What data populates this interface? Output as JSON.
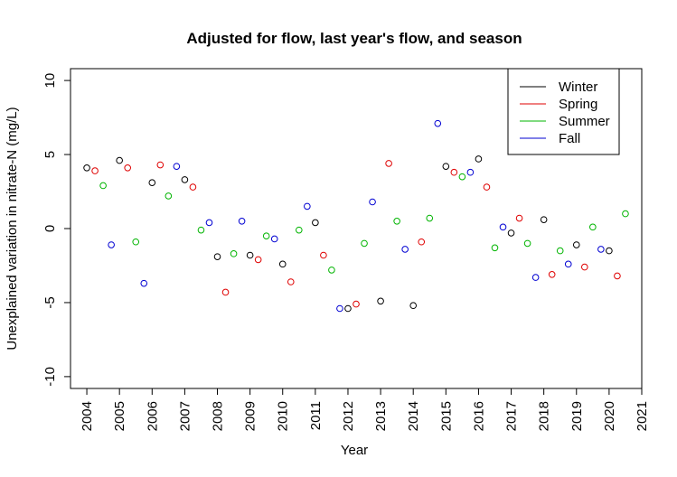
{
  "chart_data": {
    "type": "scatter",
    "title": "Adjusted for flow, last year's flow, and season",
    "xlabel": "Year",
    "ylabel": "Unexplained variation in nitrate-N (mg/L)",
    "xlim": [
      2003.5,
      2021.0
    ],
    "ylim": [
      -10.8,
      10.8
    ],
    "x_ticks": [
      "2004",
      "2005",
      "2006",
      "2007",
      "2008",
      "2009",
      "2010",
      "2011",
      "2012",
      "2013",
      "2014",
      "2015",
      "2016",
      "2017",
      "2018",
      "2019",
      "2020",
      "2021"
    ],
    "y_ticks": [
      "-10",
      "-5",
      "0",
      "5",
      "10"
    ],
    "legend_position": "top-right",
    "marker": "open-circle",
    "series": [
      {
        "name": "Winter",
        "color": "#000000",
        "points": [
          {
            "x": 2004.0,
            "y": 4.1
          },
          {
            "x": 2005.0,
            "y": 4.6
          },
          {
            "x": 2006.0,
            "y": 3.1
          },
          {
            "x": 2007.0,
            "y": 3.3
          },
          {
            "x": 2008.0,
            "y": -1.9
          },
          {
            "x": 2009.0,
            "y": -1.8
          },
          {
            "x": 2010.0,
            "y": -2.4
          },
          {
            "x": 2011.0,
            "y": 0.4
          },
          {
            "x": 2012.0,
            "y": -5.4
          },
          {
            "x": 2013.0,
            "y": -4.9
          },
          {
            "x": 2014.0,
            "y": -5.2
          },
          {
            "x": 2015.0,
            "y": 4.2
          },
          {
            "x": 2016.0,
            "y": 4.7
          },
          {
            "x": 2017.0,
            "y": -0.3
          },
          {
            "x": 2018.0,
            "y": 0.6
          },
          {
            "x": 2019.0,
            "y": -1.1
          },
          {
            "x": 2020.0,
            "y": -1.5
          }
        ]
      },
      {
        "name": "Spring",
        "color": "#df0000",
        "points": [
          {
            "x": 2004.25,
            "y": 3.9
          },
          {
            "x": 2005.25,
            "y": 4.1
          },
          {
            "x": 2006.25,
            "y": 4.3
          },
          {
            "x": 2007.25,
            "y": 2.8
          },
          {
            "x": 2008.25,
            "y": -4.3
          },
          {
            "x": 2009.25,
            "y": -2.1
          },
          {
            "x": 2010.25,
            "y": -3.6
          },
          {
            "x": 2011.25,
            "y": -1.8
          },
          {
            "x": 2012.25,
            "y": -5.1
          },
          {
            "x": 2013.25,
            "y": 4.4
          },
          {
            "x": 2014.25,
            "y": -0.9
          },
          {
            "x": 2015.25,
            "y": 3.8
          },
          {
            "x": 2016.25,
            "y": 2.8
          },
          {
            "x": 2017.25,
            "y": 0.7
          },
          {
            "x": 2018.25,
            "y": -3.1
          },
          {
            "x": 2019.25,
            "y": -2.6
          },
          {
            "x": 2020.25,
            "y": -3.2
          }
        ]
      },
      {
        "name": "Summer",
        "color": "#00b400",
        "points": [
          {
            "x": 2004.5,
            "y": 2.9
          },
          {
            "x": 2005.5,
            "y": -0.9
          },
          {
            "x": 2006.5,
            "y": 2.2
          },
          {
            "x": 2007.5,
            "y": -0.1
          },
          {
            "x": 2008.5,
            "y": -1.7
          },
          {
            "x": 2009.5,
            "y": -0.5
          },
          {
            "x": 2010.5,
            "y": -0.1
          },
          {
            "x": 2011.5,
            "y": -2.8
          },
          {
            "x": 2012.5,
            "y": -1.0
          },
          {
            "x": 2013.5,
            "y": 0.5
          },
          {
            "x": 2014.5,
            "y": 0.7
          },
          {
            "x": 2015.5,
            "y": 3.5
          },
          {
            "x": 2016.5,
            "y": -1.3
          },
          {
            "x": 2017.5,
            "y": -1.0
          },
          {
            "x": 2018.5,
            "y": -1.5
          },
          {
            "x": 2019.5,
            "y": 0.1
          },
          {
            "x": 2020.5,
            "y": 1.0
          }
        ]
      },
      {
        "name": "Fall",
        "color": "#0000d2",
        "points": [
          {
            "x": 2004.75,
            "y": -1.1
          },
          {
            "x": 2005.75,
            "y": -3.7
          },
          {
            "x": 2006.75,
            "y": 4.2
          },
          {
            "x": 2007.75,
            "y": 0.4
          },
          {
            "x": 2008.75,
            "y": 0.5
          },
          {
            "x": 2009.75,
            "y": -0.7
          },
          {
            "x": 2010.75,
            "y": 1.5
          },
          {
            "x": 2011.75,
            "y": -5.4
          },
          {
            "x": 2012.75,
            "y": 1.8
          },
          {
            "x": 2013.75,
            "y": -1.4
          },
          {
            "x": 2014.75,
            "y": 7.1
          },
          {
            "x": 2015.75,
            "y": 3.8
          },
          {
            "x": 2016.75,
            "y": 0.1
          },
          {
            "x": 2017.75,
            "y": -3.3
          },
          {
            "x": 2018.75,
            "y": -2.4
          },
          {
            "x": 2019.75,
            "y": -1.4
          }
        ]
      }
    ]
  }
}
